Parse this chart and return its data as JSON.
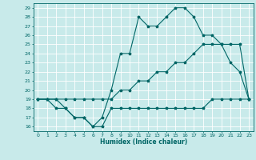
{
  "title": "",
  "xlabel": "Humidex (Indice chaleur)",
  "xlim": [
    -0.5,
    23.5
  ],
  "ylim": [
    15.5,
    29.5
  ],
  "xticks": [
    0,
    1,
    2,
    3,
    4,
    5,
    6,
    7,
    8,
    9,
    10,
    11,
    12,
    13,
    14,
    15,
    16,
    17,
    18,
    19,
    20,
    21,
    22,
    23
  ],
  "yticks": [
    16,
    17,
    18,
    19,
    20,
    21,
    22,
    23,
    24,
    25,
    26,
    27,
    28,
    29
  ],
  "background_color": "#c8eaea",
  "grid_color": "#ffffff",
  "line_color": "#006666",
  "line1_x": [
    0,
    1,
    2,
    3,
    4,
    5,
    6,
    7,
    8,
    9,
    10,
    11,
    12,
    13,
    14,
    15,
    16,
    17,
    18,
    19,
    20,
    21,
    22,
    23
  ],
  "line1_y": [
    19,
    19,
    19,
    18,
    17,
    17,
    16,
    17,
    20,
    24,
    24,
    28,
    27,
    27,
    28,
    29,
    29,
    28,
    26,
    26,
    25,
    23,
    22,
    19
  ],
  "line2_x": [
    0,
    1,
    2,
    3,
    4,
    5,
    6,
    7,
    8,
    9,
    10,
    11,
    12,
    13,
    14,
    15,
    16,
    17,
    18,
    19,
    20,
    21,
    22,
    23
  ],
  "line2_y": [
    19,
    19,
    18,
    18,
    17,
    17,
    16,
    16,
    18,
    18,
    18,
    18,
    18,
    18,
    18,
    18,
    18,
    18,
    18,
    19,
    19,
    19,
    19,
    19
  ],
  "line3_x": [
    0,
    1,
    2,
    3,
    4,
    5,
    6,
    7,
    8,
    9,
    10,
    11,
    12,
    13,
    14,
    15,
    16,
    17,
    18,
    19,
    20,
    21,
    22,
    23
  ],
  "line3_y": [
    19,
    19,
    19,
    19,
    19,
    19,
    19,
    19,
    19,
    20,
    20,
    21,
    21,
    22,
    22,
    23,
    23,
    24,
    25,
    25,
    25,
    25,
    25,
    19
  ],
  "tick_fontsize": 4.5,
  "xlabel_fontsize": 5.5,
  "marker_size": 2.5,
  "line_width": 0.8
}
